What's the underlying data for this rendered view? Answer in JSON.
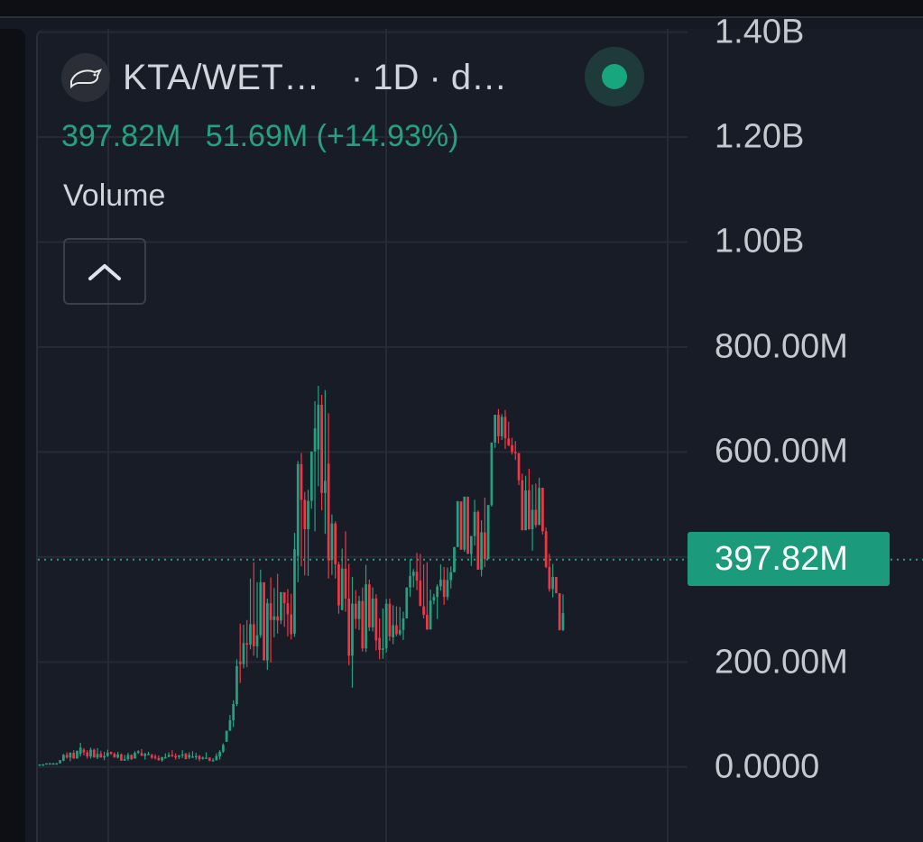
{
  "header": {
    "symbol": "KTA/WET…",
    "interval": "· 1D · d…",
    "logo_icon": "rat-icon",
    "status_icon": "live-status-dot"
  },
  "legend": {
    "last_value": "397.82M",
    "change": "51.69M (+14.93%)",
    "pane_label": "Volume",
    "collapse_icon": "chevron-up-icon"
  },
  "price_axis": {
    "ticks": [
      "1.40B",
      "1.20B",
      "1.00B",
      "800.00M",
      "600.00M",
      "200.00M",
      "0.0000"
    ],
    "current_price_label": "397.82M"
  },
  "colors": {
    "up": "#26a17f",
    "down": "#f23645",
    "background": "#181c27",
    "grid": "#252a36",
    "price_tag": "#1b9a7c"
  },
  "chart_data": {
    "type": "candlestick",
    "title": "",
    "xlabel": "",
    "ylabel": "",
    "ylim": [
      0,
      1400000000
    ],
    "y_tick_values": [
      0,
      200000000,
      400000000,
      600000000,
      800000000,
      1000000000,
      1200000000,
      1400000000
    ],
    "last_value": 397820000,
    "ohlc": [
      [
        5,
        5,
        4,
        5
      ],
      [
        5,
        6,
        5,
        5
      ],
      [
        5,
        7,
        5,
        7
      ],
      [
        7,
        8,
        7,
        7
      ],
      [
        7,
        8,
        7,
        7
      ],
      [
        7,
        8,
        7,
        7
      ],
      [
        7,
        13,
        7,
        13
      ],
      [
        12,
        25,
        11,
        23
      ],
      [
        23,
        28,
        16,
        18
      ],
      [
        18,
        28,
        11,
        27
      ],
      [
        27,
        32,
        16,
        16
      ],
      [
        16,
        31,
        17,
        31
      ],
      [
        25,
        46,
        20,
        37
      ],
      [
        33,
        36,
        22,
        28
      ],
      [
        28,
        32,
        16,
        20
      ],
      [
        20,
        37,
        16,
        33
      ],
      [
        33,
        35,
        18,
        18
      ],
      [
        18,
        36,
        15,
        25
      ],
      [
        25,
        31,
        18,
        18
      ],
      [
        18,
        29,
        13,
        21
      ],
      [
        21,
        33,
        19,
        27
      ],
      [
        29,
        29,
        23,
        25
      ],
      [
        25,
        28,
        18,
        18
      ],
      [
        18,
        29,
        16,
        24
      ],
      [
        24,
        26,
        12,
        12
      ],
      [
        12,
        23,
        13,
        15
      ],
      [
        15,
        27,
        12,
        23
      ],
      [
        23,
        24,
        13,
        15
      ],
      [
        16,
        30,
        16,
        27
      ],
      [
        27,
        32,
        25,
        30
      ],
      [
        27,
        34,
        22,
        21
      ],
      [
        21,
        27,
        14,
        25
      ],
      [
        25,
        29,
        23,
        25
      ],
      [
        23,
        25,
        15,
        18
      ],
      [
        20,
        24,
        14,
        17
      ],
      [
        17,
        22,
        12,
        13
      ],
      [
        13,
        19,
        10,
        19
      ],
      [
        19,
        26,
        16,
        19
      ],
      [
        19,
        28,
        19,
        23
      ],
      [
        23,
        32,
        19,
        21
      ],
      [
        21,
        26,
        14,
        18
      ],
      [
        19,
        23,
        15,
        22
      ],
      [
        22,
        32,
        17,
        24
      ],
      [
        25,
        27,
        15,
        15
      ],
      [
        18,
        28,
        15,
        23
      ],
      [
        19,
        30,
        18,
        20
      ],
      [
        20,
        27,
        14,
        21
      ],
      [
        21,
        23,
        11,
        15
      ],
      [
        16,
        20,
        14,
        18
      ],
      [
        18,
        28,
        18,
        18
      ],
      [
        18,
        18,
        11,
        12
      ],
      [
        12,
        17,
        11,
        13
      ],
      [
        13,
        26,
        12,
        21
      ],
      [
        20,
        32,
        14,
        29
      ],
      [
        29,
        45,
        27,
        42
      ],
      [
        48,
        69,
        48,
        69
      ],
      [
        69,
        99,
        69,
        89
      ],
      [
        89,
        127,
        76,
        120
      ],
      [
        120,
        205,
        116,
        192
      ],
      [
        201,
        273,
        160,
        196
      ],
      [
        196,
        271,
        188,
        236
      ],
      [
        236,
        280,
        190,
        233
      ],
      [
        233,
        359,
        224,
        272
      ],
      [
        272,
        390,
        212,
        230
      ],
      [
        230,
        352,
        208,
        251
      ],
      [
        251,
        376,
        246,
        352
      ],
      [
        352,
        349,
        203,
        203
      ],
      [
        203,
        321,
        185,
        312
      ],
      [
        312,
        361,
        199,
        280
      ],
      [
        280,
        341,
        247,
        287
      ],
      [
        287,
        368,
        254,
        279
      ],
      [
        279,
        333,
        272,
        333
      ],
      [
        333,
        333,
        267,
        312
      ],
      [
        312,
        339,
        249,
        291
      ],
      [
        291,
        330,
        243,
        253
      ],
      [
        254,
        446,
        248,
        415
      ],
      [
        402,
        583,
        352,
        577
      ],
      [
        577,
        598,
        382,
        509
      ],
      [
        509,
        524,
        365,
        453
      ],
      [
        453,
        528,
        364,
        507
      ],
      [
        507,
        601,
        492,
        601
      ],
      [
        601,
        697,
        449,
        645
      ],
      [
        605,
        726,
        535,
        690
      ],
      [
        690,
        709,
        489,
        522
      ],
      [
        522,
        718,
        444,
        545
      ],
      [
        578,
        674,
        359,
        394
      ],
      [
        394,
        481,
        366,
        464
      ],
      [
        464,
        468,
        359,
        386
      ],
      [
        386,
        391,
        292,
        308
      ],
      [
        299,
        416,
        299,
        378
      ],
      [
        378,
        449,
        296,
        321
      ],
      [
        321,
        387,
        194,
        212
      ],
      [
        212,
        362,
        151,
        311
      ],
      [
        311,
        337,
        263,
        282
      ],
      [
        282,
        326,
        261,
        316
      ],
      [
        316,
        342,
        220,
        226
      ],
      [
        226,
        385,
        219,
        348
      ],
      [
        348,
        357,
        259,
        266
      ],
      [
        266,
        342,
        258,
        321
      ],
      [
        321,
        329,
        222,
        241
      ],
      [
        246,
        283,
        205,
        223
      ],
      [
        223,
        302,
        206,
        226
      ],
      [
        226,
        320,
        218,
        311
      ],
      [
        311,
        321,
        240,
        249
      ],
      [
        247,
        308,
        234,
        270
      ],
      [
        270,
        306,
        249,
        253
      ],
      [
        253,
        305,
        250,
        261
      ],
      [
        261,
        296,
        242,
        283
      ],
      [
        283,
        342,
        283,
        342
      ],
      [
        342,
        396,
        324,
        364
      ],
      [
        364,
        377,
        342,
        372
      ],
      [
        372,
        408,
        337,
        355
      ],
      [
        355,
        406,
        306,
        307
      ],
      [
        306,
        386,
        283,
        290
      ],
      [
        290,
        390,
        261,
        262
      ],
      [
        262,
        338,
        262,
        317
      ],
      [
        317,
        330,
        310,
        324
      ],
      [
        324,
        348,
        282,
        344
      ],
      [
        344,
        386,
        336,
        357
      ],
      [
        357,
        381,
        309,
        324
      ],
      [
        324,
        380,
        318,
        356
      ],
      [
        356,
        382,
        340,
        371
      ],
      [
        371,
        419,
        371,
        419
      ],
      [
        419,
        507,
        419,
        506
      ],
      [
        506,
        505,
        414,
        414
      ],
      [
        414,
        515,
        410,
        515
      ],
      [
        515,
        501,
        406,
        406
      ],
      [
        406,
        440,
        383,
        440
      ],
      [
        440,
        509,
        422,
        486
      ],
      [
        486,
        489,
        376,
        376
      ],
      [
        376,
        470,
        363,
        447
      ],
      [
        447,
        513,
        381,
        396
      ],
      [
        396,
        499,
        396,
        499
      ],
      [
        499,
        618,
        496,
        618
      ],
      [
        618,
        671,
        608,
        671
      ],
      [
        671,
        682,
        616,
        630
      ],
      [
        630,
        672,
        623,
        667
      ],
      [
        667,
        680,
        606,
        626
      ],
      [
        626,
        658,
        611,
        613
      ],
      [
        613,
        627,
        595,
        600
      ],
      [
        600,
        621,
        585,
        598
      ],
      [
        598,
        598,
        537,
        546
      ],
      [
        546,
        559,
        451,
        451
      ],
      [
        451,
        555,
        451,
        527
      ],
      [
        527,
        568,
        452,
        453
      ],
      [
        453,
        538,
        412,
        490
      ],
      [
        490,
        540,
        456,
        461
      ],
      [
        461,
        551,
        461,
        532
      ],
      [
        532,
        532,
        443,
        449
      ],
      [
        449,
        456,
        379,
        381
      ],
      [
        381,
        406,
        334,
        339
      ],
      [
        339,
        387,
        323,
        362
      ],
      [
        362,
        320,
        320,
        331
      ],
      [
        331,
        331,
        260,
        261
      ],
      [
        261,
        329,
        259,
        293
      ]
    ]
  }
}
